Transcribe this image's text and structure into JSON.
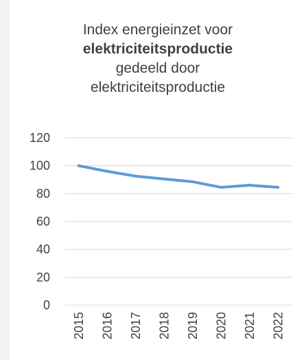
{
  "chart_data": {
    "type": "line",
    "title_lines": [
      "Index energieinzet voor",
      "elektriciteitsproductie",
      "gedeeld door",
      "elektriciteitsproductie"
    ],
    "categories": [
      "2015",
      "2016",
      "2017",
      "2018",
      "2019",
      "2020",
      "2021",
      "2022"
    ],
    "series": [
      {
        "values": [
          100,
          96,
          92.5,
          90.5,
          88.5,
          84.5,
          86,
          84.5
        ]
      }
    ],
    "ylim": [
      0,
      120
    ],
    "yticks": [
      0,
      20,
      40,
      60,
      80,
      100,
      120
    ],
    "grid": true,
    "legend": "none",
    "colors": {
      "line": "#5b9bd5",
      "grid": "#d9d9d9",
      "text": "#404040"
    }
  }
}
